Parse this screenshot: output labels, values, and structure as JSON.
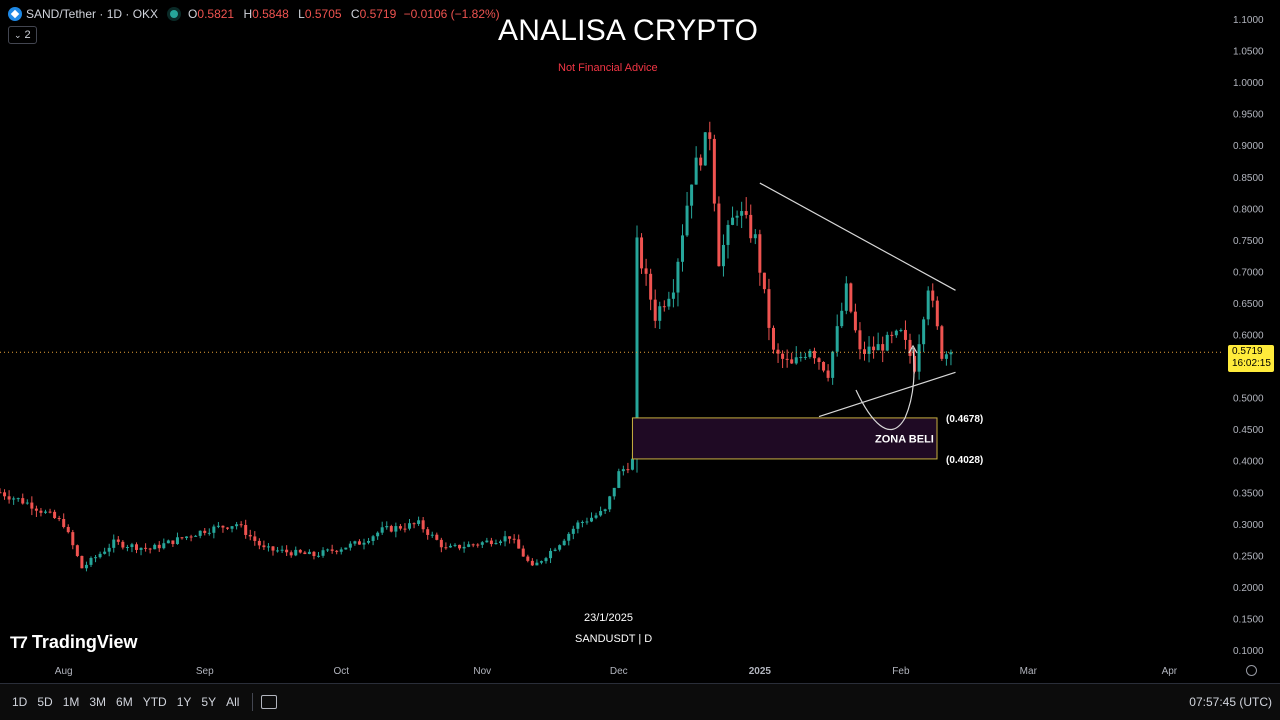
{
  "header": {
    "symbol": "SAND/Tether · 1D · OKX",
    "ohlc": [
      {
        "k": "O",
        "v": "0.5821"
      },
      {
        "k": "H",
        "v": "0.5848"
      },
      {
        "k": "L",
        "v": "0.5705"
      },
      {
        "k": "C",
        "v": "0.5719"
      }
    ],
    "change": "−0.0106 (−1.82%)",
    "indicator_count": "2"
  },
  "overlay": {
    "title": "ANALISA CRYPTO",
    "subtitle": "Not Financial Advice",
    "date_note": "23/1/2025",
    "symbol_note": "SANDUSDT | D",
    "brand": "TradingView"
  },
  "price_tag": {
    "price": "0.5719",
    "countdown": "16:02:15"
  },
  "zone": {
    "label": "ZONA BELI",
    "upper": "(0.4678)",
    "lower": "(0.4028)"
  },
  "timeframes": [
    "1D",
    "5D",
    "1M",
    "3M",
    "6M",
    "YTD",
    "1Y",
    "5Y",
    "All"
  ],
  "clock": "07:57:45 (UTC)",
  "colors": {
    "up": "#26a69a",
    "down": "#ef5350",
    "zone_fill": "#1f0a24",
    "zone_border": "#c8b040",
    "price_line": "#e8a33a"
  },
  "chart_data": {
    "type": "candlestick",
    "y_ticks": [
      "1.1000",
      "1.0500",
      "1.0000",
      "0.9500",
      "0.9000",
      "0.8500",
      "0.8000",
      "0.7500",
      "0.7000",
      "0.6500",
      "0.6000",
      "0.5500",
      "0.5000",
      "0.4500",
      "0.4000",
      "0.3500",
      "0.3000",
      "0.2500",
      "0.2000",
      "0.1500",
      "0.1000"
    ],
    "x_labels": [
      "Aug",
      "Sep",
      "Oct",
      "Nov",
      "Dec",
      "2025",
      "Feb",
      "Mar",
      "Apr"
    ],
    "ylim": [
      0.1,
      1.1
    ],
    "series": [
      {
        "name": "SAND/Tether",
        "close_path": [
          [
            "2024-07-18",
            0.35
          ],
          [
            "2024-07-25",
            0.33
          ],
          [
            "2024-08-01",
            0.3
          ],
          [
            "2024-08-05",
            0.23
          ],
          [
            "2024-08-12",
            0.27
          ],
          [
            "2024-08-20",
            0.26
          ],
          [
            "2024-09-01",
            0.29
          ],
          [
            "2024-09-08",
            0.3
          ],
          [
            "2024-09-14",
            0.26
          ],
          [
            "2024-09-25",
            0.25
          ],
          [
            "2024-10-05",
            0.27
          ],
          [
            "2024-10-10",
            0.29
          ],
          [
            "2024-10-18",
            0.3
          ],
          [
            "2024-10-24",
            0.26
          ],
          [
            "2024-11-01",
            0.27
          ],
          [
            "2024-11-07",
            0.28
          ],
          [
            "2024-11-12",
            0.23
          ],
          [
            "2024-11-18",
            0.27
          ],
          [
            "2024-11-22",
            0.3
          ],
          [
            "2024-11-28",
            0.32
          ],
          [
            "2024-12-01",
            0.38
          ],
          [
            "2024-12-04",
            0.4
          ],
          [
            "2024-12-05",
            0.74
          ],
          [
            "2024-12-09",
            0.63
          ],
          [
            "2024-12-13",
            0.68
          ],
          [
            "2024-12-17",
            0.85
          ],
          [
            "2024-12-21",
            0.92
          ],
          [
            "2024-12-23",
            0.72
          ],
          [
            "2024-12-27",
            0.8
          ],
          [
            "2024-12-31",
            0.75
          ],
          [
            "2025-01-04",
            0.57
          ],
          [
            "2025-01-08",
            0.55
          ],
          [
            "2025-01-12",
            0.58
          ],
          [
            "2025-01-16",
            0.54
          ],
          [
            "2025-01-20",
            0.67
          ],
          [
            "2025-01-23",
            0.57
          ],
          [
            "2025-01-27",
            0.58
          ],
          [
            "2025-02-01",
            0.6
          ],
          [
            "2025-02-04",
            0.55
          ],
          [
            "2025-02-07",
            0.68
          ],
          [
            "2025-02-10",
            0.57
          ],
          [
            "2025-02-12",
            0.5719
          ]
        ]
      }
    ],
    "annotations": {
      "triangle_upper": [
        [
          "2025-01-01",
          0.84
        ],
        [
          "2025-02-13",
          0.67
        ]
      ],
      "triangle_lower": [
        [
          "2025-01-14",
          0.47
        ],
        [
          "2025-02-13",
          0.54
        ]
      ],
      "buy_zone": [
        0.4028,
        0.4678
      ],
      "current_price": 0.5719
    }
  }
}
